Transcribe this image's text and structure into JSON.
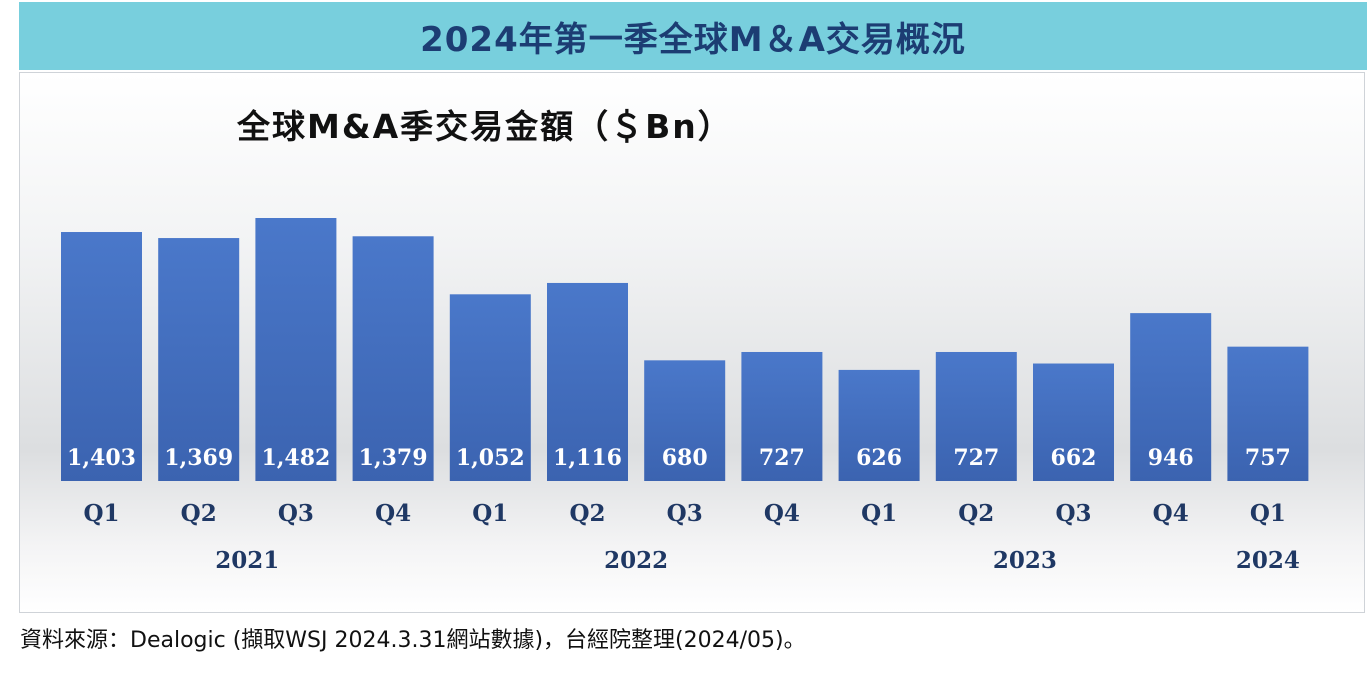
{
  "header": {
    "title": "2024年第一季全球M＆A交易概況"
  },
  "source_note": "資料來源：Dealogic (擷取WSJ 2024.3.31網站數據)，台經院整理(2024/05)。",
  "colors": {
    "header_bg": "#78cfdd",
    "header_text": "#1c3d73",
    "bar": "#4472c4",
    "axis_text": "#1f3864"
  },
  "chart_data": {
    "type": "bar",
    "title": "全球M&A季交易金額（＄Bn）",
    "categories": [
      "Q1",
      "Q2",
      "Q3",
      "Q4",
      "Q1",
      "Q2",
      "Q3",
      "Q4",
      "Q1",
      "Q2",
      "Q3",
      "Q4",
      "Q1"
    ],
    "values": [
      1403,
      1369,
      1482,
      1379,
      1052,
      1116,
      680,
      727,
      626,
      727,
      662,
      946,
      757
    ],
    "data_labels": [
      "1,403",
      "1,369",
      "1,482",
      "1,379",
      "1,052",
      "1,116",
      "680",
      "727",
      "626",
      "727",
      "662",
      "946",
      "757"
    ],
    "year_groups": [
      {
        "label": "2021",
        "from": 0,
        "to": 3
      },
      {
        "label": "2022",
        "from": 4,
        "to": 7
      },
      {
        "label": "2023",
        "from": 8,
        "to": 11
      },
      {
        "label": "2024",
        "from": 12,
        "to": 12
      }
    ],
    "xlabel": "",
    "ylabel": "",
    "ylim": [
      0,
      1482
    ],
    "grid": false,
    "legend": "none"
  }
}
